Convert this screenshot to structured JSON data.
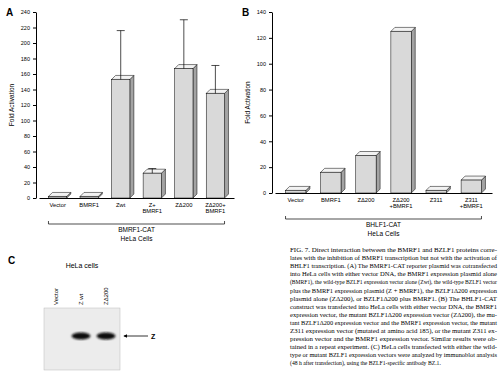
{
  "chart_data": [
    {
      "type": "bar",
      "panel_label": "A",
      "y_label": "Fold Activation",
      "categories": [
        "Vector",
        "BMRF1",
        "Zwt",
        "Z+ BMRF1",
        "ZΔ200",
        "ZΔ200+ BMRF1"
      ],
      "values": [
        2,
        2,
        153,
        32,
        167,
        135
      ],
      "errors": [
        null,
        null,
        63,
        6,
        63,
        36
      ],
      "color": "#d9d9d9",
      "ylim": [
        0,
        240
      ],
      "yticks": [
        0,
        20,
        40,
        60,
        80,
        100,
        120,
        140,
        160,
        180,
        200,
        220,
        240
      ],
      "grid": false,
      "reporter": "BMRF1-CAT",
      "cell_line": "HeLa Cells"
    },
    {
      "type": "bar",
      "panel_label": "B",
      "y_label": "Fold Activation",
      "categories": [
        "Vector",
        "BMRF1",
        "ZΔ200",
        "ZΔ200 +BMRF1",
        "Z311",
        "Z311 +BMRF1"
      ],
      "values": [
        2,
        16,
        29,
        125,
        2,
        10
      ],
      "color": "#d9d9d9",
      "ylim": [
        0,
        140
      ],
      "yticks": [
        0,
        20,
        40,
        60,
        80,
        100,
        120,
        140
      ],
      "grid": false,
      "reporter": "BHLF1-CAT",
      "cell_line": "HeLa Cells"
    }
  ],
  "blot": {
    "panel_label": "C",
    "title": "HeLa cells",
    "lanes": [
      "Vector",
      "Z wt",
      "ZΔ200"
    ],
    "bands": [
      false,
      true,
      true
    ],
    "band_label": "Z"
  },
  "caption": [
    "FIG. 7. Direct interaction between the BMRF1 and BZLF1 proteins corre-",
    "lates with the inhibition of BMRF1 transcription but not with the activation of",
    "BHLF1 transcription. (A) The BMRF1-CAT reporter plasmid was cotransfected",
    "into HeLa cells with either vector DNA, the BMRF1 expression plasmid alone",
    "(BMRF1), the wild-type BZLF1 expression vector alone (Zwt), the wild-type BZLF1 vector",
    "plus the BMRF1 expression plasmid (Z + BMRF1), the BZLF1Δ200 expression",
    "plasmid alone (ZΔ200), or BZLF1Δ200 plus BMRF1. (B) The BHLF1-CAT",
    "construct was transfected into HeLa cells with either vector DNA, the BMRF1",
    "expression vector, the mutant BZLF1Δ200 expression vector (ZΔ200), the mu-",
    "tant BZLF1Δ200 expression vector and the BMRF1 expression vector, the mutant",
    "Z311 expression vector (mutated at amino acid 185), or the mutant Z311 ex-",
    "pression vector and the BMRF1 expression vector. Similar results were ob-",
    "tained in a repeat experiment. (C) HeLa cells transfected with either the wild-",
    "type or mutant BZLF1 expression vectors were analyzed by immunoblot analysis",
    "(48 h after transfection), using the BZLF1-specific antibody BZ.1."
  ]
}
